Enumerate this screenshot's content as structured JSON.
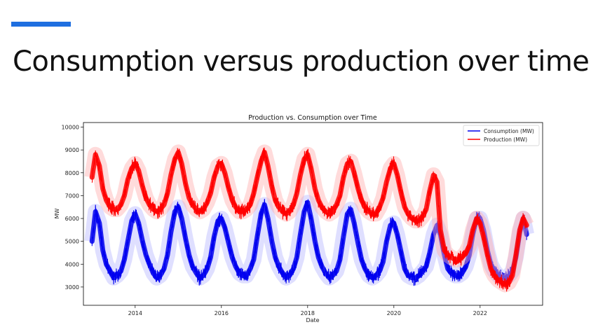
{
  "slide": {
    "title": "Consumption versus production over time",
    "accent_color": "#1f6fe0"
  },
  "chart_data": {
    "type": "line",
    "title": "Production vs. Consumption over Time",
    "xlabel": "Date",
    "ylabel": "MW",
    "xlim": [
      2012.8,
      2023.45
    ],
    "ylim": [
      2200,
      10200
    ],
    "x_ticks": [
      {
        "value": 2014,
        "label": "2014"
      },
      {
        "value": 2016,
        "label": "2016"
      },
      {
        "value": 2018,
        "label": "2018"
      },
      {
        "value": 2020,
        "label": "2020"
      },
      {
        "value": 2022,
        "label": "2022"
      }
    ],
    "y_ticks": [
      {
        "value": 3000,
        "label": "3000"
      },
      {
        "value": 4000,
        "label": "4000"
      },
      {
        "value": 5000,
        "label": "5000"
      },
      {
        "value": 6000,
        "label": "6000"
      },
      {
        "value": 7000,
        "label": "7000"
      },
      {
        "value": 8000,
        "label": "8000"
      },
      {
        "value": 9000,
        "label": "9000"
      },
      {
        "value": 10000,
        "label": "10000"
      }
    ],
    "grid": false,
    "legend_position": "top-right",
    "series": [
      {
        "name": "Consumption (MW)",
        "color": "#0000ee",
        "x": [
          2013.0,
          2013.08,
          2013.17,
          2013.25,
          2013.33,
          2013.42,
          2013.5,
          2013.58,
          2013.67,
          2013.75,
          2013.83,
          2013.92,
          2014.0,
          2014.08,
          2014.17,
          2014.25,
          2014.33,
          2014.42,
          2014.5,
          2014.58,
          2014.67,
          2014.75,
          2014.83,
          2014.92,
          2015.0,
          2015.08,
          2015.17,
          2015.25,
          2015.33,
          2015.42,
          2015.5,
          2015.58,
          2015.67,
          2015.75,
          2015.83,
          2015.92,
          2016.0,
          2016.08,
          2016.17,
          2016.25,
          2016.33,
          2016.42,
          2016.5,
          2016.58,
          2016.67,
          2016.75,
          2016.83,
          2016.92,
          2017.0,
          2017.08,
          2017.17,
          2017.25,
          2017.33,
          2017.42,
          2017.5,
          2017.58,
          2017.67,
          2017.75,
          2017.83,
          2017.92,
          2018.0,
          2018.08,
          2018.17,
          2018.25,
          2018.33,
          2018.42,
          2018.5,
          2018.58,
          2018.67,
          2018.75,
          2018.83,
          2018.92,
          2019.0,
          2019.08,
          2019.17,
          2019.25,
          2019.33,
          2019.42,
          2019.5,
          2019.58,
          2019.67,
          2019.75,
          2019.83,
          2019.92,
          2020.0,
          2020.08,
          2020.17,
          2020.25,
          2020.33,
          2020.42,
          2020.5,
          2020.58,
          2020.67,
          2020.75,
          2020.83,
          2020.92,
          2021.0,
          2021.08,
          2021.17,
          2021.25,
          2021.33,
          2021.42,
          2021.5,
          2021.58,
          2021.67,
          2021.75,
          2021.83,
          2021.92,
          2022.0,
          2022.08,
          2022.17,
          2022.25,
          2022.33,
          2022.42,
          2022.5,
          2022.58,
          2022.67,
          2022.75,
          2022.83,
          2022.92,
          2023.0,
          2023.08
        ],
        "values": [
          5000,
          6300,
          5800,
          4600,
          4000,
          3700,
          3400,
          3500,
          3700,
          4200,
          5000,
          5900,
          6200,
          5800,
          5000,
          4400,
          4000,
          3600,
          3400,
          3500,
          3800,
          4400,
          5400,
          6300,
          6500,
          6000,
          5100,
          4400,
          3900,
          3600,
          3400,
          3500,
          3800,
          4300,
          5200,
          5900,
          6000,
          5600,
          4900,
          4300,
          3900,
          3600,
          3500,
          3500,
          3800,
          4200,
          5200,
          6200,
          6600,
          6000,
          5000,
          4300,
          3900,
          3600,
          3400,
          3500,
          3800,
          4300,
          5300,
          6300,
          6700,
          6000,
          5000,
          4300,
          3900,
          3600,
          3400,
          3500,
          3700,
          4200,
          5200,
          6200,
          6400,
          5800,
          4900,
          4200,
          3800,
          3500,
          3400,
          3500,
          3700,
          4100,
          5000,
          5700,
          5800,
          5300,
          4500,
          3800,
          3500,
          3400,
          3400,
          3500,
          3700,
          3900,
          4500,
          5300,
          5700,
          5300,
          4400,
          3800,
          3600,
          3500,
          3500,
          3600,
          3900,
          4400,
          5300,
          6000,
          6000,
          5500,
          4600,
          4000,
          3700,
          3500,
          3400,
          3400,
          3500,
          3700,
          4300,
          5400,
          6000,
          5300
        ]
      },
      {
        "name": "Production (MW)",
        "color": "#ff0000",
        "x": [
          2013.0,
          2013.08,
          2013.17,
          2013.25,
          2013.33,
          2013.42,
          2013.5,
          2013.58,
          2013.67,
          2013.75,
          2013.83,
          2013.92,
          2014.0,
          2014.08,
          2014.17,
          2014.25,
          2014.33,
          2014.42,
          2014.5,
          2014.58,
          2014.67,
          2014.75,
          2014.83,
          2014.92,
          2015.0,
          2015.08,
          2015.17,
          2015.25,
          2015.33,
          2015.42,
          2015.5,
          2015.58,
          2015.67,
          2015.75,
          2015.83,
          2015.92,
          2016.0,
          2016.08,
          2016.17,
          2016.25,
          2016.33,
          2016.42,
          2016.5,
          2016.58,
          2016.67,
          2016.75,
          2016.83,
          2016.92,
          2017.0,
          2017.08,
          2017.17,
          2017.25,
          2017.33,
          2017.42,
          2017.5,
          2017.58,
          2017.67,
          2017.75,
          2017.83,
          2017.92,
          2018.0,
          2018.08,
          2018.17,
          2018.25,
          2018.33,
          2018.42,
          2018.5,
          2018.58,
          2018.67,
          2018.75,
          2018.83,
          2018.92,
          2019.0,
          2019.08,
          2019.17,
          2019.25,
          2019.33,
          2019.42,
          2019.5,
          2019.58,
          2019.67,
          2019.75,
          2019.83,
          2019.92,
          2020.0,
          2020.08,
          2020.17,
          2020.25,
          2020.33,
          2020.42,
          2020.5,
          2020.58,
          2020.67,
          2020.75,
          2020.83,
          2020.92,
          2021.0,
          2021.08,
          2021.17,
          2021.25,
          2021.33,
          2021.42,
          2021.5,
          2021.58,
          2021.67,
          2021.75,
          2021.83,
          2021.92,
          2022.0,
          2022.08,
          2022.17,
          2022.25,
          2022.33,
          2022.42,
          2022.5,
          2022.58,
          2022.67,
          2022.75,
          2022.83,
          2022.92,
          2023.0,
          2023.08
        ],
        "values": [
          7800,
          8800,
          8300,
          7300,
          6800,
          6500,
          6400,
          6400,
          6600,
          7000,
          7700,
          8200,
          8400,
          8100,
          7400,
          6900,
          6600,
          6400,
          6300,
          6400,
          6600,
          7100,
          7900,
          8600,
          8900,
          8400,
          7500,
          6900,
          6600,
          6400,
          6300,
          6400,
          6700,
          7100,
          7800,
          8300,
          8400,
          8000,
          7300,
          6800,
          6500,
          6300,
          6300,
          6400,
          6600,
          7100,
          7800,
          8500,
          8900,
          8300,
          7400,
          6800,
          6500,
          6300,
          6200,
          6300,
          6600,
          7100,
          7900,
          8600,
          8800,
          8200,
          7300,
          6800,
          6500,
          6300,
          6200,
          6300,
          6600,
          7000,
          7800,
          8400,
          8500,
          8000,
          7300,
          6800,
          6500,
          6300,
          6200,
          6200,
          6500,
          6900,
          7600,
          8200,
          8400,
          7900,
          7100,
          6500,
          6200,
          6000,
          5900,
          5900,
          6100,
          6400,
          7200,
          7900,
          7600,
          5500,
          4600,
          4400,
          4300,
          4200,
          4200,
          4300,
          4500,
          4800,
          5500,
          6000,
          5800,
          5200,
          4400,
          3800,
          3500,
          3300,
          3200,
          3100,
          3200,
          3500,
          4400,
          5500,
          6000,
          5700
        ]
      }
    ]
  }
}
